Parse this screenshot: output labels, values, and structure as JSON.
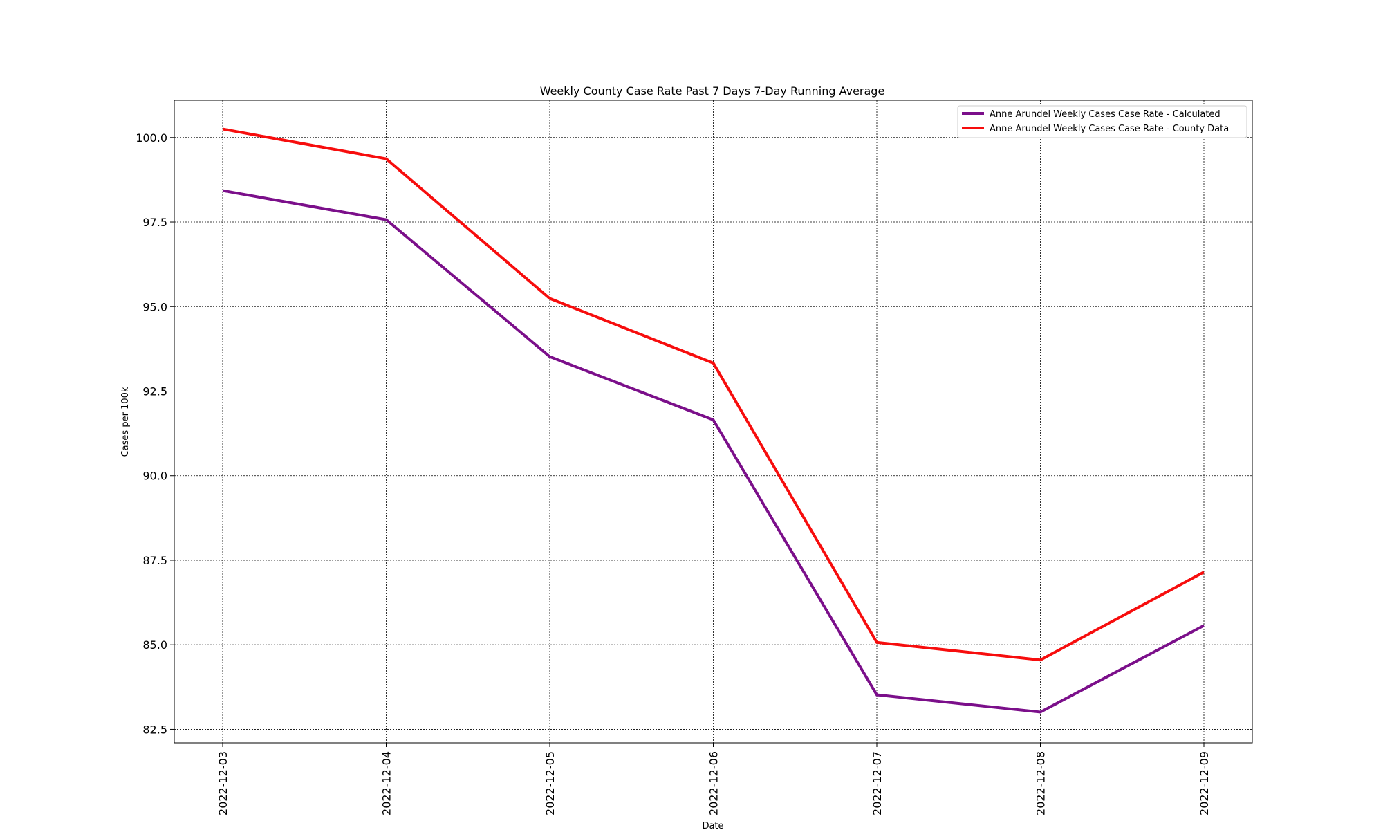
{
  "chart_data": {
    "type": "line",
    "title": "Weekly County Case Rate  Past 7 Days 7-Day Running Average",
    "xlabel": "Date",
    "ylabel": "Cases per 100k",
    "x": [
      "2022-12-03",
      "2022-12-04",
      "2022-12-05",
      "2022-12-06",
      "2022-12-07",
      "2022-12-08",
      "2022-12-09"
    ],
    "ylim": [
      82.1,
      101.1
    ],
    "yticks": [
      82.5,
      85.0,
      87.5,
      90.0,
      92.5,
      95.0,
      97.5,
      100.0
    ],
    "yticklabels": [
      "82.5",
      "85.0",
      "87.5",
      "90.0",
      "92.5",
      "95.0",
      "97.5",
      "100.0"
    ],
    "grid": true,
    "legend_position": "top-right",
    "series": [
      {
        "name": "Anne Arundel Weekly Cases Case Rate - Calculated",
        "color": "#7b0f8a",
        "values": [
          98.43,
          97.57,
          93.52,
          91.65,
          83.52,
          83.01,
          85.57
        ]
      },
      {
        "name": "Anne Arundel Weekly Cases Case Rate - County Data",
        "color": "#f70d0d",
        "values": [
          100.25,
          99.37,
          95.24,
          93.33,
          85.07,
          84.55,
          87.15
        ]
      }
    ]
  }
}
